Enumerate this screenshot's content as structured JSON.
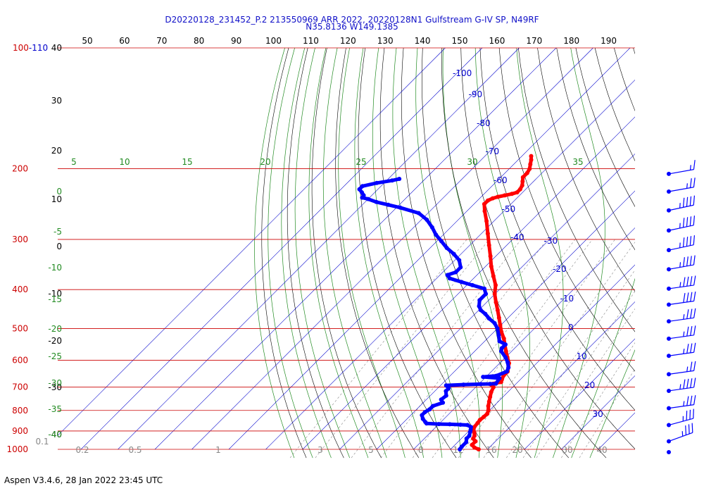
{
  "header": {
    "title_line1": "D20220128_231452_P.2 213550969 ARR 2022, 20220128N1 Gulfstream G-IV SP, N49RF",
    "title_line2": "N35.8136 W149.1385"
  },
  "footer": {
    "text": "Aspen V3.4.6, 28 Jan 2022  23:45 UTC"
  },
  "chart_data": {
    "type": "line",
    "subtype": "skew-T log-P thermodynamic diagram",
    "colors": {
      "temperature": "#ff0000",
      "dewpoint": "#0000ff",
      "isobar": "#cc0000",
      "isotherm": "#0000cc",
      "dry_adiabat": "#000000",
      "moist_adiabat": "#228b22",
      "mixing_ratio": "#888888",
      "top_scale": "#000000"
    },
    "pressure_levels": [
      {
        "p": 100,
        "label": "100-110"
      },
      {
        "p": 200,
        "label": "200"
      },
      {
        "p": 300,
        "label": "300"
      },
      {
        "p": 400,
        "label": "400"
      },
      {
        "p": 500,
        "label": "500"
      },
      {
        "p": 600,
        "label": "600"
      },
      {
        "p": 700,
        "label": "700"
      },
      {
        "p": 800,
        "label": "800"
      },
      {
        "p": 900,
        "label": "900"
      },
      {
        "p": 1000,
        "label": "1000"
      }
    ],
    "top_scale_labels": [
      "50",
      "60",
      "70",
      "80",
      "90",
      "100",
      "110",
      "120",
      "130",
      "140",
      "150",
      "160",
      "170",
      "180",
      "190"
    ],
    "left_black_labels": [
      "40",
      "30",
      "20",
      "10",
      "0",
      "-10",
      "-20",
      "-30",
      "-40"
    ],
    "left_green_labels": [
      "0",
      "-5",
      "-10",
      "-15",
      "-20",
      "-25",
      "-30",
      "-35",
      "-40"
    ],
    "mixing_ratio_labels": [
      "0.1",
      "0.2",
      "0.5",
      "1",
      "3",
      "5",
      "8",
      "12",
      "16",
      "20",
      "30",
      "40"
    ],
    "green_top_labels": [
      "5",
      "10",
      "15",
      "20",
      "25",
      "30",
      "35"
    ],
    "isotherm_labels": [
      "-100",
      "-90",
      "-80",
      "-70",
      "-60",
      "-50",
      "-40",
      "-30",
      "-20",
      "-10",
      "0",
      "10",
      "20",
      "30"
    ],
    "temperature": [
      {
        "p": 1000,
        "t": 7.6
      },
      {
        "p": 990,
        "t": 6.0
      },
      {
        "p": 975,
        "t": 4.6
      },
      {
        "p": 955,
        "t": 4.6
      },
      {
        "p": 940,
        "t": 3.2
      },
      {
        "p": 925,
        "t": 2.8
      },
      {
        "p": 910,
        "t": 2.0
      },
      {
        "p": 895,
        "t": 1.0
      },
      {
        "p": 880,
        "t": 0.4
      },
      {
        "p": 860,
        "t": 0.2
      },
      {
        "p": 845,
        "t": 0.0
      },
      {
        "p": 830,
        "t": 0.2
      },
      {
        "p": 815,
        "t": 0.3
      },
      {
        "p": 800,
        "t": -0.3
      },
      {
        "p": 780,
        "t": -1.5
      },
      {
        "p": 760,
        "t": -2.5
      },
      {
        "p": 740,
        "t": -3.5
      },
      {
        "p": 720,
        "t": -4.5
      },
      {
        "p": 700,
        "t": -5.2
      },
      {
        "p": 692,
        "t": -6.2
      },
      {
        "p": 688,
        "t": -7.0
      },
      {
        "p": 680,
        "t": -4.5
      },
      {
        "p": 670,
        "t": -5.0
      },
      {
        "p": 655,
        "t": -5.6
      },
      {
        "p": 640,
        "t": -5.6
      },
      {
        "p": 625,
        "t": -6.5
      },
      {
        "p": 610,
        "t": -7.5
      },
      {
        "p": 590,
        "t": -9.5
      },
      {
        "p": 570,
        "t": -11.5
      },
      {
        "p": 550,
        "t": -13.5
      },
      {
        "p": 530,
        "t": -15.5
      },
      {
        "p": 510,
        "t": -18.0
      },
      {
        "p": 490,
        "t": -20.2
      },
      {
        "p": 470,
        "t": -22.5
      },
      {
        "p": 450,
        "t": -24.9
      },
      {
        "p": 430,
        "t": -27.5
      },
      {
        "p": 410,
        "t": -30.1
      },
      {
        "p": 390,
        "t": -32.2
      },
      {
        "p": 370,
        "t": -35.3
      },
      {
        "p": 350,
        "t": -38.5
      },
      {
        "p": 330,
        "t": -41.5
      },
      {
        "p": 310,
        "t": -44.8
      },
      {
        "p": 290,
        "t": -48.3
      },
      {
        "p": 270,
        "t": -52.0
      },
      {
        "p": 255,
        "t": -55.2
      },
      {
        "p": 245,
        "t": -57.2
      },
      {
        "p": 240,
        "t": -57.2
      },
      {
        "p": 237,
        "t": -56.5
      },
      {
        "p": 235,
        "t": -55.5
      },
      {
        "p": 233,
        "t": -54.0
      },
      {
        "p": 231,
        "t": -52.5
      },
      {
        "p": 229,
        "t": -51.5
      },
      {
        "p": 225,
        "t": -51.5
      },
      {
        "p": 220,
        "t": -52.0
      },
      {
        "p": 215,
        "t": -53.0
      },
      {
        "p": 210,
        "t": -54.0
      },
      {
        "p": 205,
        "t": -54.0
      },
      {
        "p": 200,
        "t": -54.5
      },
      {
        "p": 195,
        "t": -55.5
      },
      {
        "p": 190,
        "t": -56.5
      },
      {
        "p": 186,
        "t": -57.5
      }
    ],
    "dewpoint": [
      {
        "p": 1000,
        "t": 2.5
      },
      {
        "p": 985,
        "t": 2.3
      },
      {
        "p": 960,
        "t": 2.3
      },
      {
        "p": 940,
        "t": 1.4
      },
      {
        "p": 925,
        "t": 1.4
      },
      {
        "p": 905,
        "t": 0.6
      },
      {
        "p": 895,
        "t": 0.2
      },
      {
        "p": 880,
        "t": -0.5
      },
      {
        "p": 870,
        "t": -2.0
      },
      {
        "p": 868,
        "t": -4.0
      },
      {
        "p": 866,
        "t": -7.0
      },
      {
        "p": 865,
        "t": -10.0
      },
      {
        "p": 862,
        "t": -13.5
      },
      {
        "p": 855,
        "t": -14.2
      },
      {
        "p": 840,
        "t": -15.7
      },
      {
        "p": 822,
        "t": -17.0
      },
      {
        "p": 808,
        "t": -17.0
      },
      {
        "p": 795,
        "t": -16.5
      },
      {
        "p": 780,
        "t": -16.5
      },
      {
        "p": 765,
        "t": -14.7
      },
      {
        "p": 752,
        "t": -16.0
      },
      {
        "p": 735,
        "t": -15.7
      },
      {
        "p": 716,
        "t": -17.0
      },
      {
        "p": 705,
        "t": -17.0
      },
      {
        "p": 693,
        "t": -18.5
      },
      {
        "p": 690,
        "t": -14.0
      },
      {
        "p": 688,
        "t": -9.5
      },
      {
        "p": 687,
        "t": -7.0
      },
      {
        "p": 686,
        "t": -5.5
      },
      {
        "p": 665,
        "t": -6.0
      },
      {
        "p": 660,
        "t": -10.8
      },
      {
        "p": 656,
        "t": -7.5
      },
      {
        "p": 640,
        "t": -5.8
      },
      {
        "p": 625,
        "t": -6.5
      },
      {
        "p": 608,
        "t": -8.0
      },
      {
        "p": 590,
        "t": -10.0
      },
      {
        "p": 570,
        "t": -12.8
      },
      {
        "p": 560,
        "t": -13.5
      },
      {
        "p": 548,
        "t": -13.5
      },
      {
        "p": 538,
        "t": -16.0
      },
      {
        "p": 520,
        "t": -17.8
      },
      {
        "p": 500,
        "t": -20.0
      },
      {
        "p": 485,
        "t": -22.2
      },
      {
        "p": 472,
        "t": -25.0
      },
      {
        "p": 460,
        "t": -27.2
      },
      {
        "p": 450,
        "t": -29.5
      },
      {
        "p": 440,
        "t": -31.0
      },
      {
        "p": 425,
        "t": -32.5
      },
      {
        "p": 410,
        "t": -32.5
      },
      {
        "p": 398,
        "t": -34.3
      },
      {
        "p": 390,
        "t": -38.5
      },
      {
        "p": 383,
        "t": -42.3
      },
      {
        "p": 375,
        "t": -46.5
      },
      {
        "p": 368,
        "t": -48.0
      },
      {
        "p": 362,
        "t": -46.5
      },
      {
        "p": 352,
        "t": -46.5
      },
      {
        "p": 338,
        "t": -48.8
      },
      {
        "p": 326,
        "t": -52.0
      },
      {
        "p": 315,
        "t": -55.5
      },
      {
        "p": 303,
        "t": -58.8
      },
      {
        "p": 292,
        "t": -62.0
      },
      {
        "p": 280,
        "t": -65.0
      },
      {
        "p": 268,
        "t": -68.5
      },
      {
        "p": 258,
        "t": -72.5
      },
      {
        "p": 250,
        "t": -79.0
      },
      {
        "p": 246,
        "t": -83.0
      },
      {
        "p": 242,
        "t": -87.0
      },
      {
        "p": 238,
        "t": -90.0
      },
      {
        "p": 236,
        "t": -92.0
      },
      {
        "p": 233,
        "t": -92.2
      },
      {
        "p": 229,
        "t": -93.5
      },
      {
        "p": 225,
        "t": -95.0
      },
      {
        "p": 221,
        "t": -95.0
      },
      {
        "p": 217,
        "t": -92.0
      },
      {
        "p": 214,
        "t": -88.5
      },
      {
        "p": 212,
        "t": -87.0
      }
    ],
    "wind_barbs": [
      {
        "p": 206,
        "dir": 260,
        "spd": 15
      },
      {
        "p": 228,
        "dir": 260,
        "spd": 25
      },
      {
        "p": 254,
        "dir": 258,
        "spd": 45
      },
      {
        "p": 285,
        "dir": 258,
        "spd": 45
      },
      {
        "p": 319,
        "dir": 258,
        "spd": 45
      },
      {
        "p": 356,
        "dir": 260,
        "spd": 45
      },
      {
        "p": 398,
        "dir": 262,
        "spd": 45
      },
      {
        "p": 436,
        "dir": 262,
        "spd": 40
      },
      {
        "p": 480,
        "dir": 262,
        "spd": 35
      },
      {
        "p": 530,
        "dir": 262,
        "spd": 35
      },
      {
        "p": 585,
        "dir": 262,
        "spd": 35
      },
      {
        "p": 650,
        "dir": 262,
        "spd": 25
      },
      {
        "p": 715,
        "dir": 262,
        "spd": 45
      },
      {
        "p": 790,
        "dir": 262,
        "spd": 35
      },
      {
        "p": 870,
        "dir": 255,
        "spd": 35
      },
      {
        "p": 955,
        "dir": 250,
        "spd": 35
      },
      {
        "p": 1030,
        "dir": 0,
        "spd": 0
      }
    ]
  }
}
